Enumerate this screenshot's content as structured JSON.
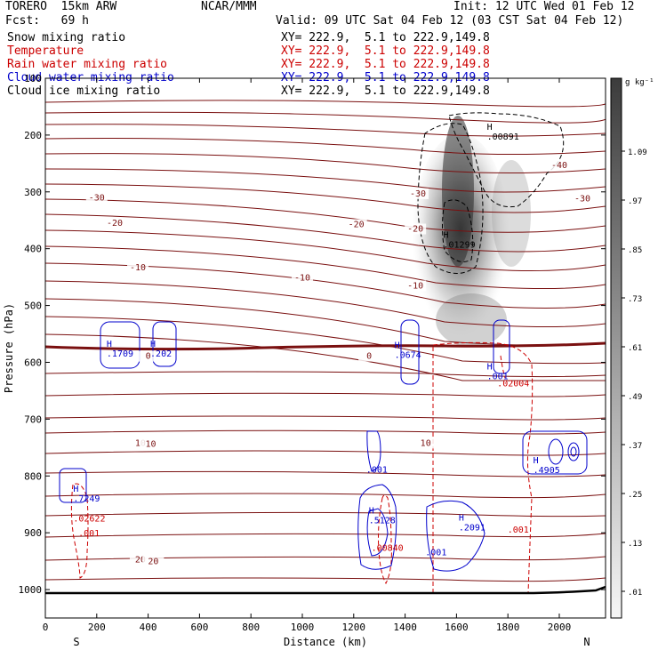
{
  "header": {
    "model": "TORERO  15km ARW",
    "org": "NCAR/MMM",
    "init": "Init: 12 UTC Wed 01 Feb 12",
    "fcst": "Fcst:   69 h",
    "valid": "Valid: 09 UTC Sat 04 Feb 12 (03 CST Sat 04 Feb 12)"
  },
  "legend": [
    {
      "label": "Snow mixing ratio",
      "xy": "XY= 222.9,  5.1 to 222.9,149.8",
      "color": "#000000"
    },
    {
      "label": "Temperature",
      "xy": "XY= 222.9,  5.1 to 222.9,149.8",
      "color": "#cc0000"
    },
    {
      "label": "Rain water mixing ratio",
      "xy": "XY= 222.9,  5.1 to 222.9,149.8",
      "color": "#cc0000"
    },
    {
      "label": "Cloud water mixing ratio",
      "xy": "XY= 222.9,  5.1 to 222.9,149.8",
      "color": "#0000cc"
    },
    {
      "label": "Cloud ice mixing ratio",
      "xy": "XY= 222.9,  5.1 to 222.9,149.8",
      "color": "#000000"
    }
  ],
  "chart_data": {
    "type": "cross-section contour",
    "xlabel": "Distance (km)",
    "ylabel": "Pressure (hPa)",
    "xlim": [
      0,
      2180
    ],
    "ylim": [
      100,
      1050
    ],
    "xticks": [
      0,
      200,
      400,
      600,
      800,
      1000,
      1200,
      1400,
      1600,
      1800,
      2000
    ],
    "yticks": [
      100,
      200,
      300,
      400,
      500,
      600,
      700,
      800,
      900,
      1000
    ],
    "end_labels": {
      "left": "S",
      "right": "N"
    },
    "colorbar": {
      "unit": "g kg⁻¹",
      "ticks": [
        "1.09",
        ".97",
        ".85",
        ".73",
        ".61",
        ".49",
        ".37",
        ".25",
        ".13",
        ".01"
      ]
    },
    "temperature_labels": [
      {
        "x": 200,
        "p": 315,
        "text": "-30"
      },
      {
        "x": 1450,
        "p": 308,
        "text": "-30"
      },
      {
        "x": 2090,
        "p": 317,
        "text": "-30"
      },
      {
        "x": 2000,
        "p": 258,
        "text": "-40"
      },
      {
        "x": 270,
        "p": 360,
        "text": "-20"
      },
      {
        "x": 1210,
        "p": 362,
        "text": "-20"
      },
      {
        "x": 1440,
        "p": 370,
        "text": "-20"
      },
      {
        "x": 360,
        "p": 438,
        "text": "-10"
      },
      {
        "x": 1000,
        "p": 456,
        "text": "-10"
      },
      {
        "x": 1440,
        "p": 470,
        "text": "-10"
      },
      {
        "x": 400,
        "p": 594,
        "text": "0"
      },
      {
        "x": 1260,
        "p": 594,
        "text": "0"
      },
      {
        "x": 370,
        "p": 747,
        "text": "10"
      },
      {
        "x": 410,
        "p": 749,
        "text": "10"
      },
      {
        "x": 1480,
        "p": 747,
        "text": "10"
      },
      {
        "x": 370,
        "p": 952,
        "text": "20"
      },
      {
        "x": 420,
        "p": 955,
        "text": "20"
      }
    ],
    "maxima_labels": [
      {
        "x": 1760,
        "p": 208,
        "h": "H",
        "value": ".00891",
        "series": "Cloud ice mixing ratio"
      },
      {
        "x": 1590,
        "p": 398,
        "h": "H",
        "value": ".01299",
        "series": "Cloud ice mixing ratio"
      },
      {
        "x": 280,
        "p": 590,
        "h": "H",
        "value": ".1709",
        "series": "Cloud water mixing ratio"
      },
      {
        "x": 450,
        "p": 590,
        "h": "H",
        "value": ".202",
        "series": "Cloud water mixing ratio"
      },
      {
        "x": 1400,
        "p": 592,
        "h": "H",
        "value": ".0674",
        "series": "Cloud water mixing ratio"
      },
      {
        "x": 1760,
        "p": 630,
        "h": "H",
        "value": ".001",
        "series": "Cloud water mixing ratio"
      },
      {
        "x": 1800,
        "p": 642,
        "h": "",
        "value": ".02004",
        "series": "Rain water mixing ratio"
      },
      {
        "x": 1290,
        "p": 794,
        "h": "",
        "value": ".001",
        "series": "Cloud water mixing ratio"
      },
      {
        "x": 1940,
        "p": 795,
        "h": "H",
        "value": ".4905",
        "series": "Cloud water mixing ratio"
      },
      {
        "x": 150,
        "p": 845,
        "h": "H",
        "value": ".7249",
        "series": "Cloud water mixing ratio"
      },
      {
        "x": 150,
        "p": 880,
        "h": "",
        "value": ".02622",
        "series": "Rain water mixing ratio"
      },
      {
        "x": 170,
        "p": 906,
        "h": "",
        "value": ".001",
        "series": "Rain water mixing ratio"
      },
      {
        "x": 1300,
        "p": 883,
        "h": "H",
        "value": ".5128",
        "series": "Cloud water mixing ratio"
      },
      {
        "x": 1310,
        "p": 932,
        "h": "",
        "value": ".00840",
        "series": "Rain water mixing ratio"
      },
      {
        "x": 1650,
        "p": 896,
        "h": "H",
        "value": ".2091",
        "series": "Cloud water mixing ratio"
      },
      {
        "x": 1520,
        "p": 940,
        "h": "",
        "value": ".001",
        "series": "Cloud water mixing ratio"
      },
      {
        "x": 1840,
        "p": 900,
        "h": "",
        "value": ".001",
        "series": "Rain water mixing ratio"
      }
    ]
  }
}
